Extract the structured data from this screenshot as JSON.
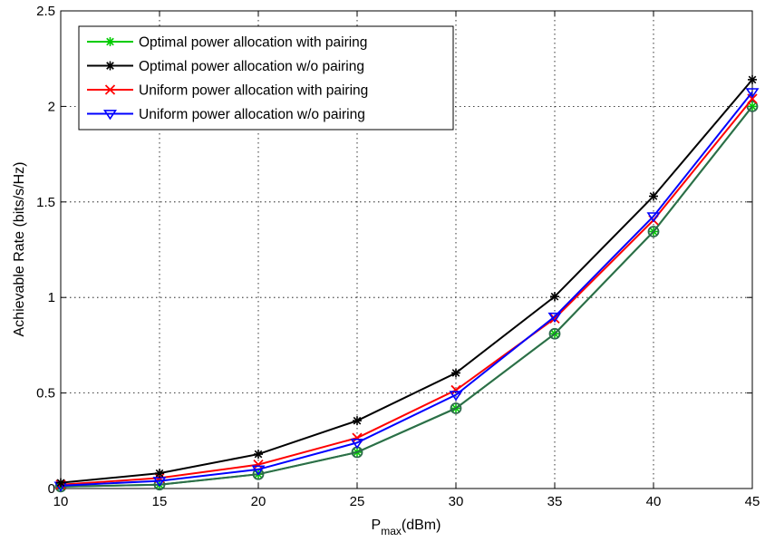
{
  "chart_data": {
    "type": "line",
    "title": "",
    "xlabel": "P",
    "xlabel_sub": "max",
    "xlabel_unit": "(dBm)",
    "ylabel": "Achievable Rate (bits/s/Hz)",
    "xlim": [
      10,
      45
    ],
    "ylim": [
      0,
      2.5
    ],
    "x": [
      10,
      15,
      20,
      25,
      30,
      35,
      40,
      45
    ],
    "xticks": [
      "10",
      "15",
      "20",
      "25",
      "30",
      "35",
      "40",
      "45"
    ],
    "yticks": [
      "0",
      "0.5",
      "1",
      "1.5",
      "2",
      "2.5"
    ],
    "ytick_values": [
      0,
      0.5,
      1,
      1.5,
      2,
      2.5
    ],
    "grid": true,
    "legend_position": "top-left",
    "series": [
      {
        "name": "Optimal power allocation with pairing",
        "color": "#00cc00",
        "marker": "star",
        "values": [
          0.01,
          0.02,
          0.075,
          0.19,
          0.42,
          0.81,
          1.345,
          2.0
        ]
      },
      {
        "name": "Optimal power allocation w/o pairing",
        "color": "#000000",
        "marker": "star",
        "values": [
          0.03,
          0.08,
          0.18,
          0.355,
          0.605,
          1.005,
          1.53,
          2.14
        ]
      },
      {
        "name": "Uniform power allocation with pairing",
        "color": "#ff0000",
        "marker": "x",
        "values": [
          0.02,
          0.055,
          0.125,
          0.265,
          0.515,
          0.89,
          1.405,
          2.04
        ]
      },
      {
        "name": "Uniform power allocation w/o pairing",
        "color": "#0000ff",
        "marker": "triangle-down",
        "values": [
          0.015,
          0.04,
          0.1,
          0.24,
          0.49,
          0.9,
          1.425,
          2.075
        ]
      },
      {
        "name": "",
        "color": "#2e6b4c",
        "marker": "circle",
        "values": [
          0.01,
          0.02,
          0.075,
          0.19,
          0.42,
          0.81,
          1.345,
          2.0
        ]
      }
    ]
  }
}
